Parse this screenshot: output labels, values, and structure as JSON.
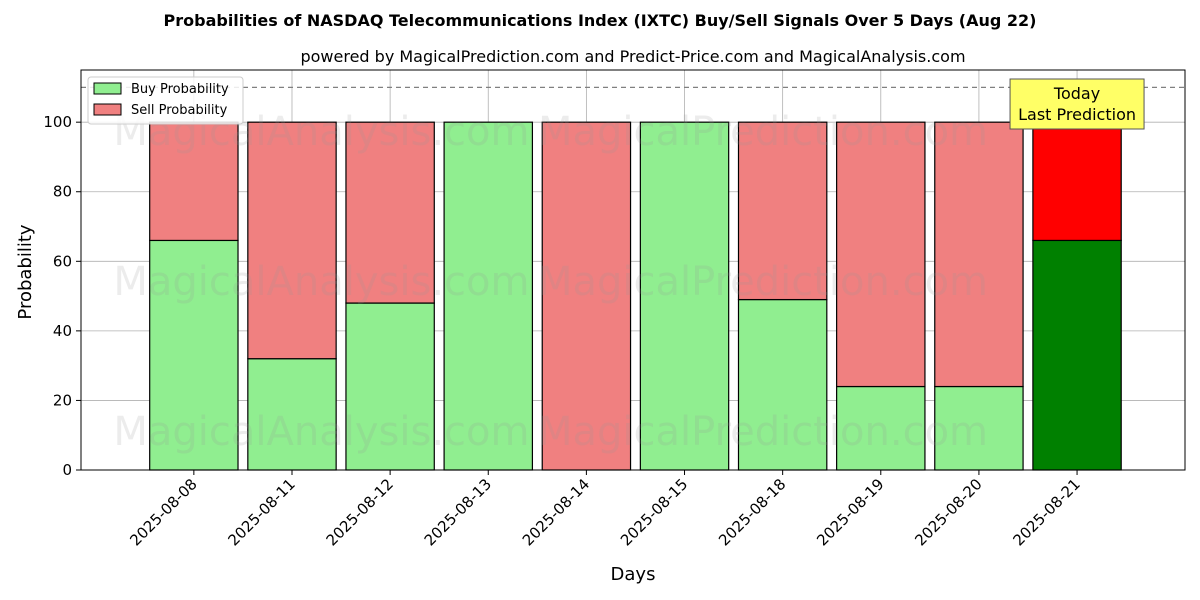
{
  "chart_data": {
    "type": "bar",
    "stacked": true,
    "title": "Probabilities of NASDAQ Telecommunications Index (IXTC) Buy/Sell Signals Over 5 Days (Aug 22)",
    "subtitle": "powered by MagicalPrediction.com and Predict-Price.com and MagicalAnalysis.com",
    "xlabel": "Days",
    "ylabel": "Probability",
    "ylim": [
      0,
      115
    ],
    "yticks": [
      0,
      20,
      40,
      60,
      80,
      100
    ],
    "reference_line": 110,
    "grid": true,
    "legend_placement": "top-left",
    "categories": [
      "2025-08-08",
      "2025-08-11",
      "2025-08-12",
      "2025-08-13",
      "2025-08-14",
      "2025-08-15",
      "2025-08-18",
      "2025-08-19",
      "2025-08-20",
      "2025-08-21"
    ],
    "series": [
      {
        "name": "Buy Probability",
        "color": "#90EE90",
        "values": [
          66,
          32,
          48,
          100,
          0,
          100,
          49,
          24,
          24,
          66
        ]
      },
      {
        "name": "Sell Probability",
        "color": "#F08080",
        "values": [
          34,
          68,
          52,
          0,
          100,
          0,
          51,
          76,
          76,
          34
        ]
      }
    ],
    "highlight": {
      "index": 9,
      "buy_color": "#008000",
      "sell_color": "#FF0000"
    },
    "annotation": {
      "lines": [
        "Today",
        "Last Prediction"
      ],
      "background": "#FFFF66"
    },
    "watermarks": [
      "MagicalAnalysis.com",
      "MagicalPrediction.com"
    ]
  }
}
